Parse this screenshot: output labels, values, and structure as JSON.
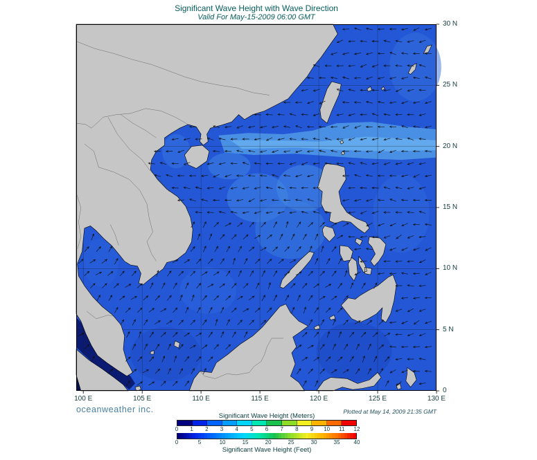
{
  "header": {
    "title": "Significant Wave Height with Wave Direction",
    "subtitle": "Valid For May-15-2009 06:00 GMT"
  },
  "map": {
    "lat_labels": [
      "30 N",
      "25 N",
      "20 N",
      "15 N",
      "10 N",
      "5 N",
      "0"
    ],
    "lon_labels": [
      "100 E",
      "105 E",
      "110 E",
      "115 E",
      "120 E",
      "125 E",
      "130 E"
    ],
    "lat_values": [
      30,
      25,
      20,
      15,
      10,
      5,
      0
    ],
    "lon_values": [
      100,
      105,
      110,
      115,
      120,
      125,
      130
    ]
  },
  "legend": {
    "meters_label": "Significant Wave Height (Meters)",
    "feet_label": "Significant Wave Height (Feet)",
    "meters_ticks": [
      "0",
      "1",
      "2",
      "3",
      "4",
      "5",
      "6",
      "7",
      "8",
      "9",
      "10",
      "11",
      "12"
    ],
    "feet_ticks": [
      "0",
      "5",
      "10",
      "15",
      "20",
      "25",
      "30",
      "35",
      "40"
    ],
    "colors": [
      "#00007e",
      "#0023e8",
      "#0063ff",
      "#009dff",
      "#00d4ff",
      "#00e6b0",
      "#19c24c",
      "#8fdc28",
      "#f2ee1f",
      "#ffb300",
      "#ff6a00",
      "#f00000"
    ]
  },
  "footer": {
    "brand": "oceanweather inc.",
    "plotted": "Plotted at May 14, 2009 21:35 GMT"
  },
  "chart_data": {
    "type": "heatmap",
    "title": "Significant Wave Height with Wave Direction",
    "subtitle": "Valid For May-15-2009 06:00 GMT",
    "x_ticks": [
      "100 E",
      "105 E",
      "110 E",
      "115 E",
      "120 E",
      "125 E",
      "130 E"
    ],
    "y_ticks": [
      "0",
      "5 N",
      "10 N",
      "15 N",
      "20 N",
      "25 N",
      "30 N"
    ],
    "colorbar": {
      "label_primary": "Significant Wave Height (Meters)",
      "ticks_meters": [
        0,
        1,
        2,
        3,
        4,
        5,
        6,
        7,
        8,
        9,
        10,
        11,
        12
      ],
      "label_secondary": "Significant Wave Height (Feet)",
      "ticks_feet": [
        0,
        5,
        10,
        15,
        20,
        25,
        30,
        35,
        40
      ],
      "colors": [
        "#00007e",
        "#0023e8",
        "#0063ff",
        "#009dff",
        "#00d4ff",
        "#00e6b0",
        "#19c24c",
        "#8fdc28",
        "#f2ee1f",
        "#ffb300",
        "#ff6a00",
        "#f00000"
      ]
    }
  }
}
